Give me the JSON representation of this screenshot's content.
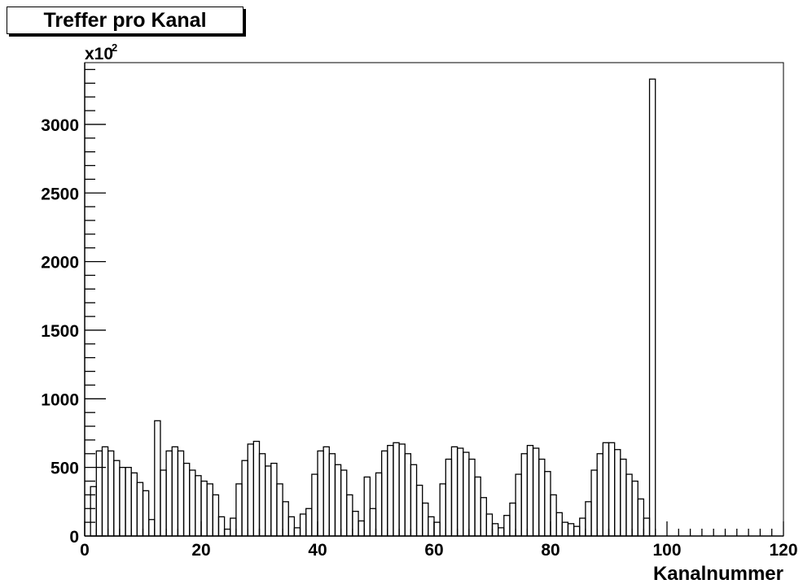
{
  "chart_data": {
    "type": "bar",
    "title": "Treffer pro Kanal",
    "xlabel": "Kanalnummer",
    "ylabel": "",
    "y_multiplier_label": "x10",
    "y_multiplier_exponent": "2",
    "xlim": [
      0,
      120
    ],
    "ylim": [
      0,
      3450
    ],
    "x_ticks": [
      "0",
      "20",
      "40",
      "60",
      "80",
      "100",
      "120"
    ],
    "y_ticks": [
      "0",
      "500",
      "1000",
      "1500",
      "2000",
      "2500",
      "3000"
    ],
    "grid": false,
    "bin_width": 1,
    "x": [
      0,
      1,
      2,
      3,
      4,
      5,
      6,
      7,
      8,
      9,
      10,
      11,
      12,
      13,
      14,
      15,
      16,
      17,
      18,
      19,
      20,
      21,
      22,
      23,
      24,
      25,
      26,
      27,
      28,
      29,
      30,
      31,
      32,
      33,
      34,
      35,
      36,
      37,
      38,
      39,
      40,
      41,
      42,
      43,
      44,
      45,
      46,
      47,
      48,
      49,
      50,
      51,
      52,
      53,
      54,
      55,
      56,
      57,
      58,
      59,
      60,
      61,
      62,
      63,
      64,
      65,
      66,
      67,
      68,
      69,
      70,
      71,
      72,
      73,
      74,
      75,
      76,
      77,
      78,
      79,
      80,
      81,
      82,
      83,
      84,
      85,
      86,
      87,
      88,
      89,
      90,
      91,
      92,
      93,
      94,
      95,
      96,
      97,
      98,
      99,
      100,
      101,
      102,
      103,
      104,
      105,
      106,
      107,
      108,
      109,
      110,
      111,
      112,
      113,
      114,
      115,
      116,
      117,
      118,
      119
    ],
    "values": [
      0,
      360,
      620,
      650,
      620,
      550,
      500,
      500,
      460,
      390,
      330,
      120,
      840,
      480,
      620,
      650,
      620,
      530,
      480,
      440,
      400,
      380,
      300,
      140,
      50,
      130,
      380,
      550,
      670,
      690,
      600,
      510,
      530,
      380,
      250,
      140,
      60,
      160,
      200,
      450,
      620,
      650,
      600,
      520,
      480,
      300,
      180,
      110,
      430,
      200,
      460,
      620,
      660,
      680,
      670,
      600,
      520,
      370,
      240,
      140,
      100,
      380,
      560,
      650,
      640,
      610,
      560,
      430,
      280,
      160,
      90,
      60,
      150,
      240,
      450,
      600,
      660,
      640,
      560,
      470,
      300,
      170,
      100,
      90,
      70,
      130,
      250,
      480,
      600,
      680,
      680,
      630,
      560,
      450,
      400,
      270,
      130,
      3330,
      0,
      0,
      0,
      0,
      0,
      0,
      0,
      0,
      0,
      0,
      0,
      0,
      0,
      0,
      0,
      0,
      0,
      0,
      0,
      0,
      0,
      0
    ]
  }
}
